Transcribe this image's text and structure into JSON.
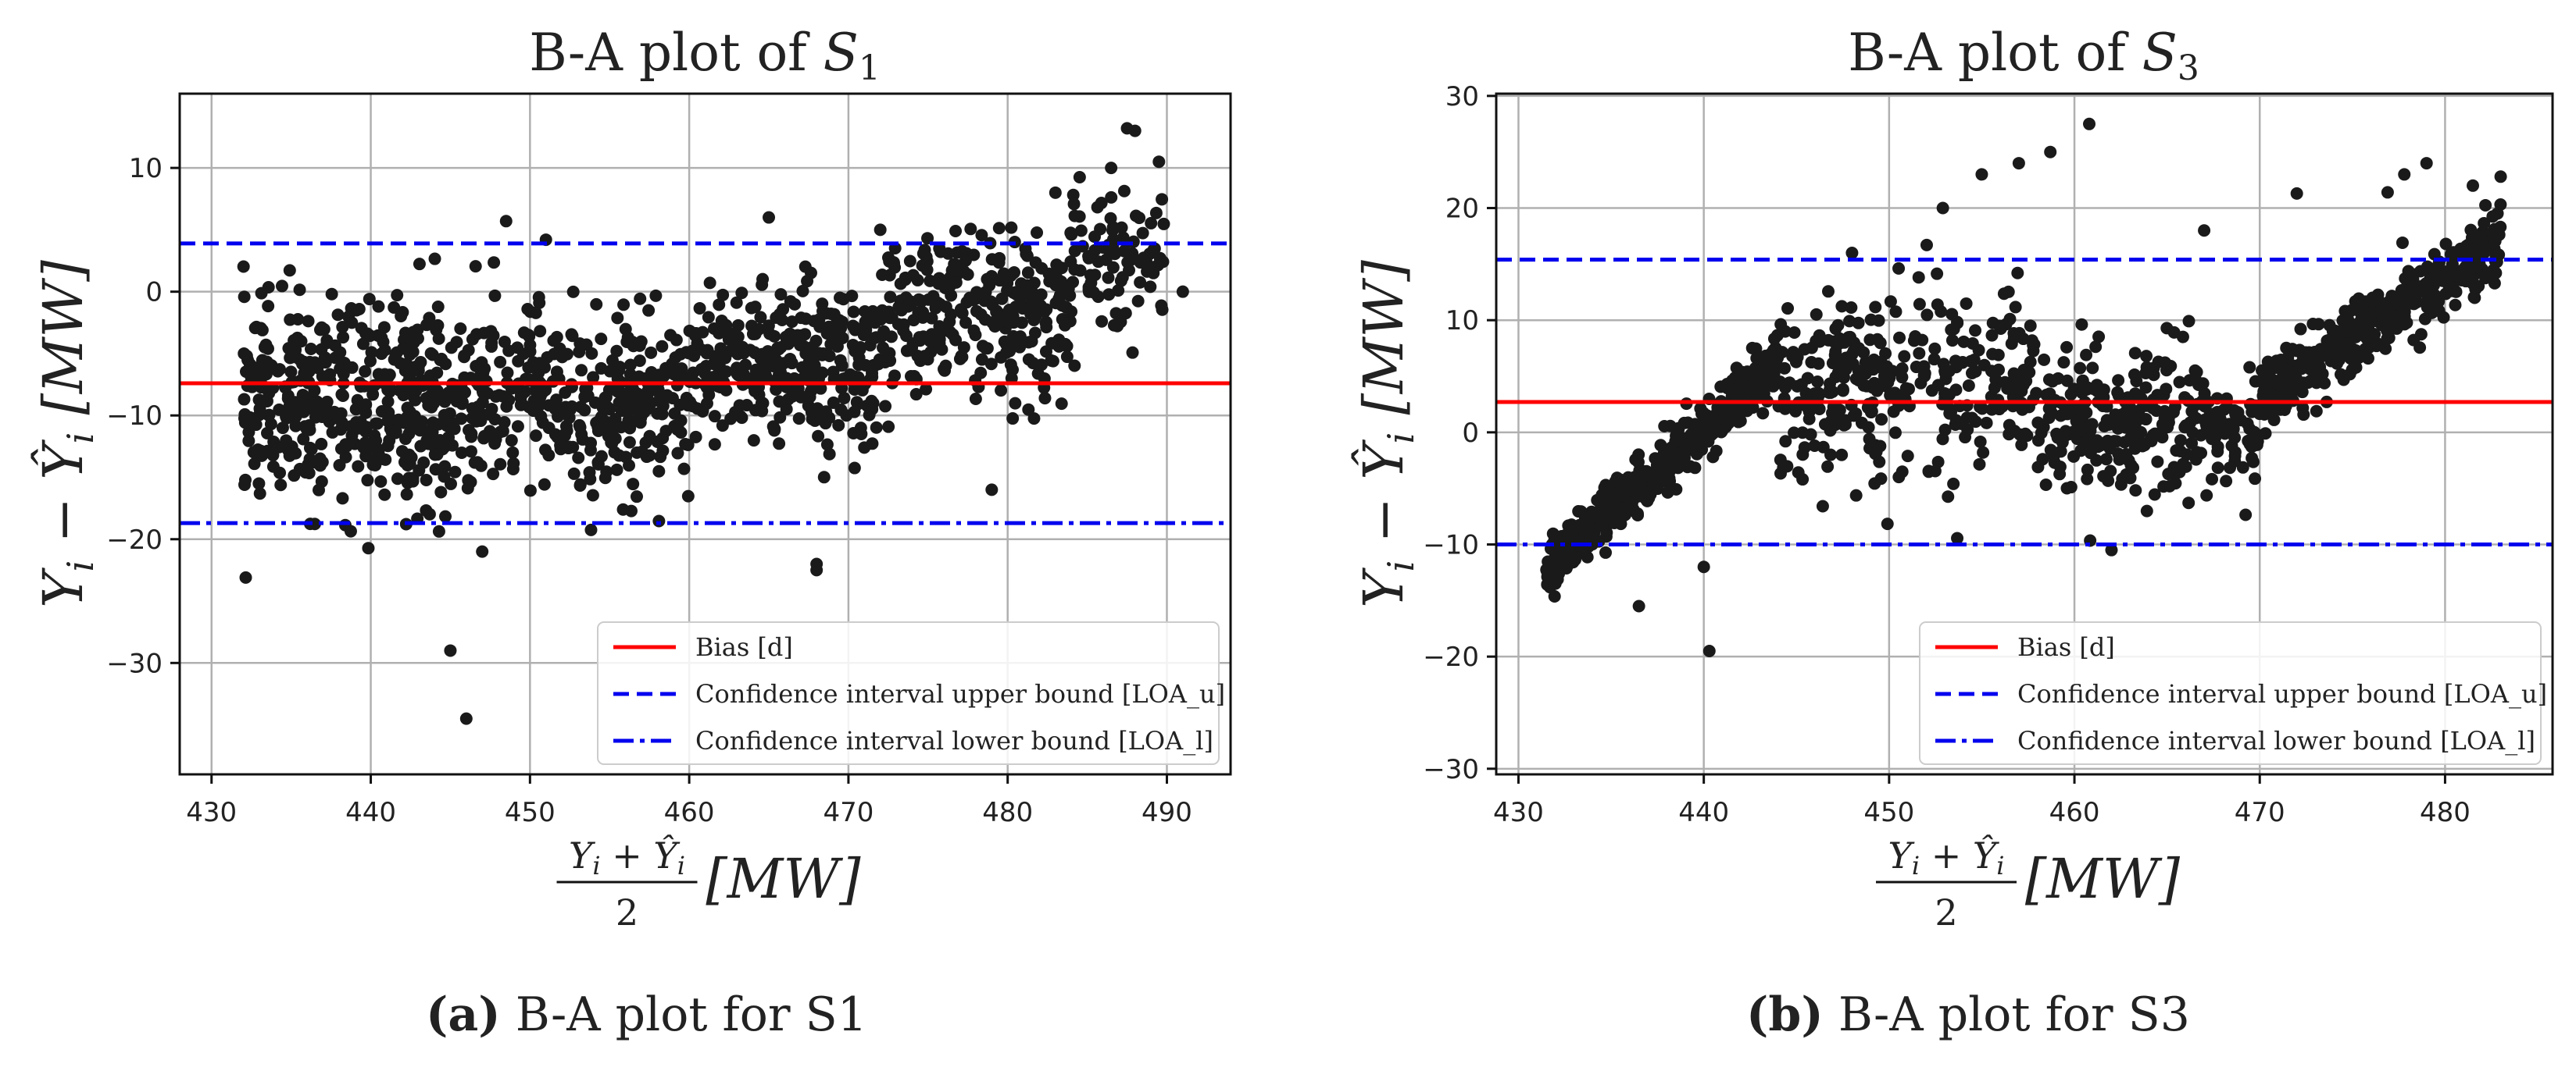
{
  "chart_data": [
    {
      "type": "scatter",
      "title_prefix": "B-A plot of ",
      "title_var": "S",
      "title_sub": "1",
      "xlabel": "(Y_i + Ŷ_i)/2 [MW]",
      "xlabel_unit": "[MW]",
      "ylabel": "Y_i − Ŷ_i [MW]",
      "ylabel_unit": "[MW]",
      "xlim": [
        428,
        494
      ],
      "ylim": [
        -39,
        16
      ],
      "xticks": [
        430,
        440,
        450,
        460,
        470,
        480,
        490
      ],
      "yticks": [
        -30,
        -20,
        -10,
        0,
        10
      ],
      "grid": true,
      "bias": -7.4,
      "loa_upper": 3.9,
      "loa_lower": -18.7,
      "legend_position": "lower-right",
      "legend": [
        "Bias [d]",
        "Confidence interval upper bound [LOA_u]",
        "Confidence interval lower bound [LOA_l]"
      ],
      "sample_points": [
        [
          445,
          -29
        ],
        [
          446,
          -34.5
        ],
        [
          447,
          -21
        ],
        [
          448.5,
          5.7
        ],
        [
          451,
          4.2
        ],
        [
          468,
          -22
        ],
        [
          468,
          -22.5
        ],
        [
          465,
          6
        ],
        [
          487.5,
          13.2
        ],
        [
          488,
          13
        ],
        [
          486.5,
          10
        ],
        [
          489.5,
          10.5
        ],
        [
          491,
          0
        ],
        [
          479,
          -16
        ],
        [
          472,
          5
        ],
        [
          483,
          8
        ]
      ],
      "cloud_bands": [
        {
          "x_range": [
            432,
            445
          ],
          "y_center": -9,
          "y_spread": 9,
          "count": 420
        },
        {
          "x_range": [
            445,
            460
          ],
          "y_center": -9,
          "y_spread": 8,
          "count": 380
        },
        {
          "x_range": [
            460,
            472
          ],
          "y_center": -6,
          "y_spread": 7,
          "count": 330
        },
        {
          "x_range": [
            472,
            484
          ],
          "y_center": -2,
          "y_spread": 7,
          "count": 300
        },
        {
          "x_range": [
            484,
            490
          ],
          "y_center": 3,
          "y_spread": 6,
          "count": 90
        }
      ],
      "caption_label": "(a)",
      "caption_text": "B-A plot for S1"
    },
    {
      "type": "scatter",
      "title_prefix": "B-A plot of ",
      "title_var": "S",
      "title_sub": "3",
      "xlabel": "(Y_i + Ŷ_i)/2 [MW]",
      "xlabel_unit": "[MW]",
      "ylabel": "Y_i − Ŷ_i [MW]",
      "ylabel_unit": "[MW]",
      "xlim": [
        428.8,
        485.8
      ],
      "ylim": [
        -30.5,
        30.2
      ],
      "xticks": [
        430,
        440,
        450,
        460,
        470,
        480
      ],
      "yticks": [
        -30,
        -20,
        -10,
        0,
        10,
        20,
        30
      ],
      "grid": true,
      "bias": 2.7,
      "loa_upper": 15.4,
      "loa_lower": -10,
      "legend_position": "lower-right",
      "legend": [
        "Bias [d]",
        "Confidence interval upper bound [LOA_u]",
        "Confidence interval lower bound [LOA_l]"
      ],
      "sample_points": [
        [
          436.5,
          -15.5
        ],
        [
          440.3,
          -19.5
        ],
        [
          440,
          -12
        ],
        [
          460.8,
          27.5
        ],
        [
          458.7,
          25
        ],
        [
          457,
          24
        ],
        [
          455,
          23
        ],
        [
          452.9,
          20
        ],
        [
          472,
          21.3
        ],
        [
          476.9,
          21.4
        ],
        [
          481.5,
          22
        ],
        [
          483,
          22.8
        ],
        [
          477.8,
          23
        ],
        [
          479,
          24
        ],
        [
          448,
          16
        ],
        [
          467,
          18
        ],
        [
          462,
          -10.5
        ]
      ],
      "cloud_bands": [
        {
          "x_range": [
            431.5,
            444
          ],
          "y_center": "ramp",
          "y_start": -12,
          "y_end": 6,
          "y_spread": 3,
          "count": 450
        },
        {
          "x_range": [
            444,
            458
          ],
          "y_center": 4,
          "y_spread": 9,
          "count": 330
        },
        {
          "x_range": [
            458,
            470
          ],
          "y_center": 1,
          "y_spread": 7,
          "count": 320
        },
        {
          "x_range": [
            470,
            483
          ],
          "y_center": "ramp",
          "y_start": 3,
          "y_end": 17,
          "y_spread": 3.5,
          "count": 420
        }
      ],
      "caption_label": "(b)",
      "caption_text": "B-A plot for S3"
    }
  ],
  "colors": {
    "bias": "#ff0000",
    "loa": "#0000ee",
    "points": "#1a1a1a",
    "grid": "#b0b0b0"
  }
}
